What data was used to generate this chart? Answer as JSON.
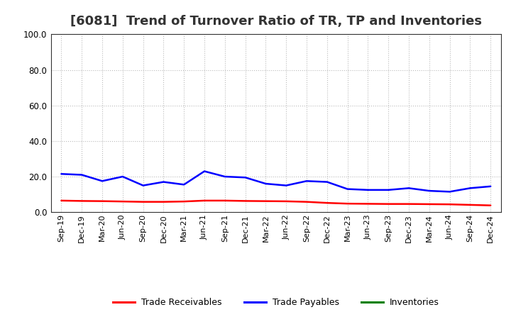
{
  "title": "[6081]  Trend of Turnover Ratio of TR, TP and Inventories",
  "xlabels": [
    "Sep-19",
    "Dec-19",
    "Mar-20",
    "Jun-20",
    "Sep-20",
    "Dec-20",
    "Mar-21",
    "Jun-21",
    "Sep-21",
    "Dec-21",
    "Mar-22",
    "Jun-22",
    "Sep-22",
    "Dec-22",
    "Mar-23",
    "Jun-23",
    "Sep-23",
    "Dec-23",
    "Mar-24",
    "Jun-24",
    "Sep-24",
    "Dec-24"
  ],
  "trade_receivables": [
    6.5,
    6.3,
    6.2,
    6.0,
    5.8,
    5.8,
    6.0,
    6.5,
    6.5,
    6.3,
    6.2,
    6.1,
    5.8,
    5.2,
    4.8,
    4.7,
    4.6,
    4.6,
    4.5,
    4.4,
    4.1,
    3.8
  ],
  "trade_payables": [
    21.5,
    21.0,
    17.5,
    20.0,
    15.0,
    17.0,
    15.5,
    23.0,
    20.0,
    19.5,
    16.0,
    15.0,
    17.5,
    17.0,
    13.0,
    12.5,
    12.5,
    13.5,
    12.0,
    11.5,
    13.5,
    14.5
  ],
  "inventories": [
    null,
    null,
    null,
    null,
    null,
    null,
    null,
    null,
    null,
    null,
    null,
    null,
    null,
    null,
    null,
    null,
    null,
    null,
    null,
    null,
    null,
    null
  ],
  "color_tr": "#ff0000",
  "color_tp": "#0000ff",
  "color_inv": "#008000",
  "ylim": [
    0.0,
    100.0
  ],
  "yticks": [
    0.0,
    20.0,
    40.0,
    60.0,
    80.0,
    100.0
  ],
  "legend_labels": [
    "Trade Receivables",
    "Trade Payables",
    "Inventories"
  ],
  "bg_color": "#ffffff",
  "plot_bg_color": "#ffffff",
  "grid_color": "#bbbbbb",
  "title_fontsize": 13,
  "tick_fontsize": 8,
  "legend_fontsize": 9
}
